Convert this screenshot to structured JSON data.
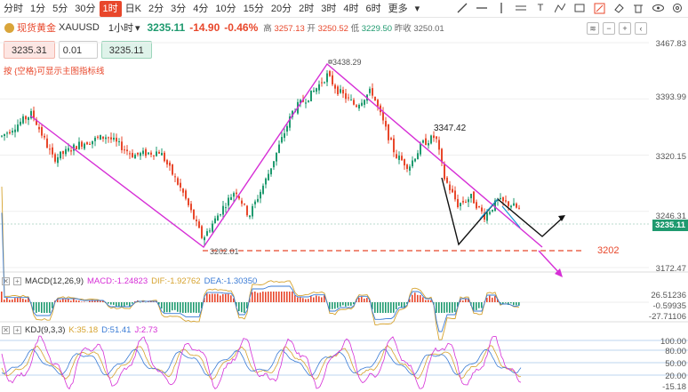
{
  "toolbar": {
    "timeframes": [
      "分时",
      "1分",
      "5分",
      "30分",
      "1时",
      "日K",
      "2分",
      "3分",
      "4分",
      "10分",
      "15分",
      "20分",
      "2时",
      "3时",
      "4时",
      "6时",
      "更多"
    ],
    "active_timeframe": "1时"
  },
  "symbol": {
    "name": "现货黄金",
    "code": "XAUUSD",
    "period": "1小时",
    "price": "3235.11",
    "change": "-14.90",
    "change_pct": "-0.46%",
    "high_label": "高",
    "high": "3257.13",
    "open_label": "开",
    "open": "3250.52",
    "low_label": "低",
    "low": "3229.50",
    "prev_label": "昨收",
    "prev": "3250.01"
  },
  "order": {
    "sell_price": "3235.31",
    "qty": "0.01",
    "buy_price": "3235.11"
  },
  "hint": "按 {空格}可显示主图指标线",
  "axis": {
    "main": [
      "3467.83",
      "3393.99",
      "3320.15",
      "3246.31",
      "3172.47"
    ],
    "current": "3235.11",
    "macd": [
      "26.51236",
      "-0.59935",
      "-27.71106"
    ],
    "kdj": [
      "100.00",
      "80.00",
      "50.00",
      "20.00",
      "-15.18"
    ]
  },
  "annotations": {
    "high_point": "3438.29",
    "mid_point": "3347.42",
    "low_point": "3202.01",
    "level": "3202"
  },
  "macd": {
    "title": "MACD(12,26,9)",
    "macd": "MACD:-1.24823",
    "dif": "DIF:-1.92762",
    "dea": "DEA:-1.30350"
  },
  "kdj": {
    "title": "KDJ(9,3,3)",
    "k": "K:35.18",
    "d": "D:51.41",
    "j": "J:2.73"
  },
  "colors": {
    "up": "#e8472b",
    "down": "#1f9a6f",
    "trend": "#d62fd6"
  }
}
